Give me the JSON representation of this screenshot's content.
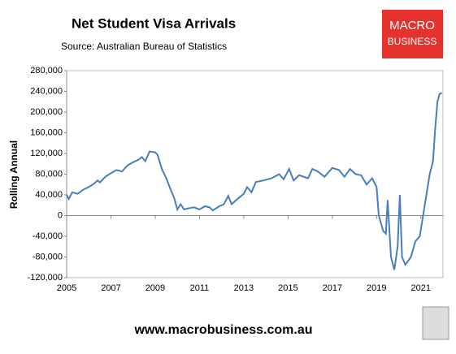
{
  "chart_data": {
    "type": "line",
    "title": "Net Student Visa Arrivals",
    "subtitle": "Source: Australian Bureau of Statistics",
    "y_label": "Rolling Annual",
    "xlim": [
      2005,
      2022
    ],
    "xticks": [
      2005,
      2007,
      2009,
      2011,
      2013,
      2015,
      2017,
      2019,
      2021
    ],
    "ylim": [
      -120000,
      280000
    ],
    "yticks": [
      {
        "value": -120000,
        "label": "-120,000"
      },
      {
        "value": -80000,
        "label": "-80,000"
      },
      {
        "value": -40000,
        "label": "-40,000"
      },
      {
        "value": 0,
        "label": "0"
      },
      {
        "value": 40000,
        "label": "40,000"
      },
      {
        "value": 80000,
        "label": "80,000"
      },
      {
        "value": 120000,
        "label": "120,000"
      },
      {
        "value": 160000,
        "label": "160,000"
      },
      {
        "value": 200000,
        "label": "200,000"
      },
      {
        "value": 240000,
        "label": "240,000"
      },
      {
        "value": 280000,
        "label": "280,000"
      }
    ],
    "grid": false,
    "series": [
      {
        "name": "Net Student Visa Arrivals",
        "color": "#4a7ebb",
        "x": [
          2005.0,
          2005.1,
          2005.25,
          2005.5,
          2005.75,
          2006.0,
          2006.25,
          2006.4,
          2006.5,
          2006.75,
          2007.0,
          2007.25,
          2007.5,
          2007.75,
          2008.0,
          2008.25,
          2008.4,
          2008.55,
          2008.75,
          2009.0,
          2009.1,
          2009.3,
          2009.5,
          2009.7,
          2009.85,
          2010.0,
          2010.15,
          2010.3,
          2010.5,
          2010.75,
          2011.0,
          2011.25,
          2011.45,
          2011.6,
          2011.9,
          2012.1,
          2012.3,
          2012.45,
          2012.8,
          2013.0,
          2013.15,
          2013.35,
          2013.55,
          2013.9,
          2014.25,
          2014.6,
          2014.8,
          2015.05,
          2015.25,
          2015.5,
          2015.9,
          2016.1,
          2016.35,
          2016.65,
          2017.0,
          2017.3,
          2017.55,
          2017.8,
          2018.05,
          2018.3,
          2018.55,
          2018.8,
          2019.0,
          2019.1,
          2019.3,
          2019.42,
          2019.5,
          2019.65,
          2019.8,
          2019.95,
          2020.05,
          2020.15,
          2020.3,
          2020.55,
          2020.75,
          2020.95,
          2021.1,
          2021.25,
          2021.4,
          2021.55,
          2021.65,
          2021.75,
          2021.85,
          2021.95
        ],
        "values": [
          40000,
          32000,
          45000,
          42000,
          50000,
          55000,
          62000,
          68000,
          64000,
          75000,
          82000,
          88000,
          85000,
          97000,
          103000,
          108000,
          113000,
          105000,
          124000,
          122000,
          118000,
          90000,
          72000,
          50000,
          35000,
          12000,
          22000,
          12000,
          14000,
          16000,
          12000,
          18000,
          16000,
          10000,
          18000,
          22000,
          38000,
          22000,
          35000,
          42000,
          55000,
          45000,
          65000,
          68000,
          72000,
          80000,
          70000,
          90000,
          68000,
          78000,
          72000,
          90000,
          85000,
          75000,
          92000,
          88000,
          75000,
          90000,
          80000,
          78000,
          60000,
          72000,
          55000,
          0,
          -30000,
          -35000,
          30000,
          -80000,
          -105000,
          -60000,
          40000,
          -80000,
          -95000,
          -80000,
          -50000,
          -40000,
          0,
          40000,
          80000,
          105000,
          170000,
          220000,
          235000,
          237000
        ]
      }
    ]
  },
  "logo": {
    "line1": "MACRO",
    "line2": "BUSINESS"
  },
  "footer": "www.macrobusiness.com.au"
}
